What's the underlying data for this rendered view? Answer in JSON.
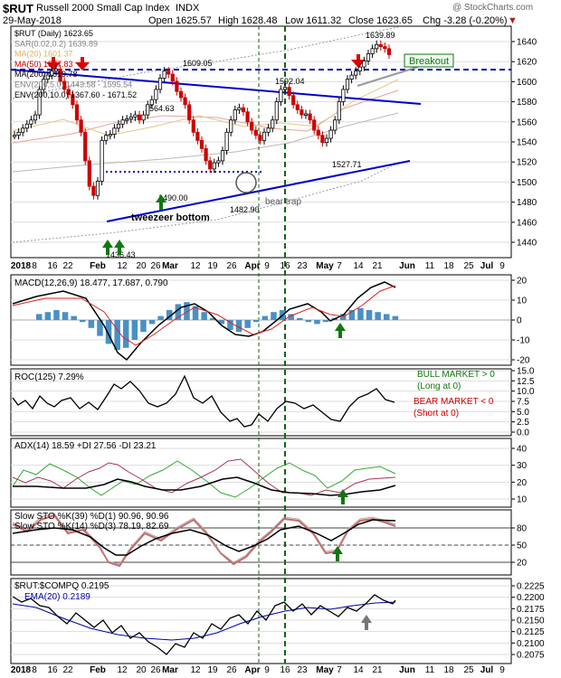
{
  "header": {
    "symbol": "$RUT",
    "name": "Russell 2000 Small Cap Index",
    "exchange": "INDX",
    "date": "29-May-2018",
    "watermark": "@ StockCharts.com",
    "open": "Open 1625.57",
    "high": "High 1628.48",
    "low": "Low 1611.32",
    "close": "Close 1623.65",
    "chg": "Chg -3.28 (-0.20%)"
  },
  "legend": [
    {
      "text": "$RUT (Daily) 1623.65",
      "color": "#000000"
    },
    {
      "text": "SAR(0.02,0.2) 1639.89",
      "color": "#7f7f7f"
    },
    {
      "text": "MA(20) 1601.37",
      "color": "#e0b060"
    },
    {
      "text": "MA(50) 1577.83",
      "color": "#cc0000"
    },
    {
      "text": "MA(200) 1519.78",
      "color": "#000000"
    },
    {
      "text": "ENV(200,5.0) 1443.58 - 1595.54",
      "color": "#7f7f7f"
    },
    {
      "text": "ENV(200,10.0) 1367.60 - 1671.52",
      "color": "#000000"
    }
  ],
  "price_axis": {
    "ticks": [
      "1640",
      "1620",
      "1600",
      "1580",
      "1560",
      "1540",
      "1520",
      "1500",
      "1480",
      "1460",
      "1440"
    ]
  },
  "annotations": {
    "a1609": "1609.05",
    "a1592": "1592.04",
    "a1564": "1564.63",
    "a1527": "1527.71",
    "a1639": "1639.89",
    "a1482": "1482.90",
    "a1436": "1436.43",
    "a1490": "1490.00",
    "tweezer": "tweezeer bottom",
    "beartrap": "bear trap",
    "breakout": "Breakout"
  },
  "x_axis": {
    "labels": [
      "2018",
      "8",
      "16",
      "22",
      "Feb",
      "12",
      "20",
      "26",
      "Mar",
      "12",
      "19",
      "26",
      "Apr",
      "9",
      "16",
      "23",
      "May",
      "7",
      "14",
      "21",
      "Jun",
      "11",
      "18",
      "25",
      "Jul",
      "9"
    ]
  },
  "macd": {
    "title": "MACD(12,26,9) 18.477, 17.687, 0.790",
    "ticks": [
      "20",
      "10",
      "0",
      "-10",
      "-20"
    ]
  },
  "roc": {
    "title": "ROC(125) 7.29%",
    "ticks": [
      "15.0",
      "12.5",
      "10.0",
      "7.5",
      "5.0",
      "2.5",
      "0.0"
    ],
    "bull1": "BULL MARKET > 0",
    "bull2": "(Long at 0)",
    "bear1": "BEAR MARKET < 0",
    "bear2": "(Short at 0)"
  },
  "adx": {
    "title": "ADX(14) 18.59 +DI 27.56 -DI 23.21",
    "ticks": [
      "40",
      "30",
      "20",
      "10"
    ]
  },
  "sto": {
    "title1": "Slow STO %K(39) %D(1) 90.96, 90.96",
    "title2": "Slow STO %K(14) %D(3) 78.19, 82.69",
    "ticks": [
      "80",
      "50",
      "20"
    ]
  },
  "ratio": {
    "title": "$RUT:$COMPQ 0.2195",
    "ema": "EMA(20) 0.2189",
    "ticks": [
      "0.2225",
      "0.2200",
      "0.2175",
      "0.2150",
      "0.2125",
      "0.2100",
      "0.2075"
    ]
  },
  "colors": {
    "candle_up": "#000000",
    "candle_down": "#cc0000",
    "trend": "#0000cc",
    "green": "#117711",
    "macd_hist": "#4a90c4"
  },
  "chart_data": {
    "type": "line",
    "title": "$RUT Russell 2000 Small Cap Index INDX",
    "ylabel": "",
    "ylim": [
      1425,
      1652
    ],
    "series": [
      {
        "name": "$RUT (Daily)",
        "values": [
          1545,
          1548,
          1552,
          1556,
          1560,
          1565,
          1590,
          1600,
          1604,
          1608,
          1610,
          1598,
          1590,
          1585,
          1575,
          1560,
          1548,
          1520,
          1495,
          1486,
          1500,
          1540,
          1545,
          1546,
          1552,
          1556,
          1560,
          1561,
          1563,
          1565,
          1560,
          1565,
          1575,
          1580,
          1590,
          1601,
          1608,
          1605,
          1598,
          1588,
          1582,
          1575,
          1560,
          1548,
          1540,
          1532,
          1520,
          1512,
          1518,
          1520,
          1530,
          1548,
          1560,
          1570,
          1572,
          1568,
          1558,
          1550,
          1545,
          1540,
          1548,
          1552,
          1560,
          1578,
          1590,
          1592,
          1584,
          1575,
          1570,
          1565,
          1566,
          1560,
          1550,
          1545,
          1538,
          1542,
          1550,
          1560,
          1578,
          1590,
          1600,
          1604,
          1608,
          1612,
          1618,
          1625,
          1630,
          1634,
          1632,
          1630,
          1624
        ]
      }
    ]
  }
}
